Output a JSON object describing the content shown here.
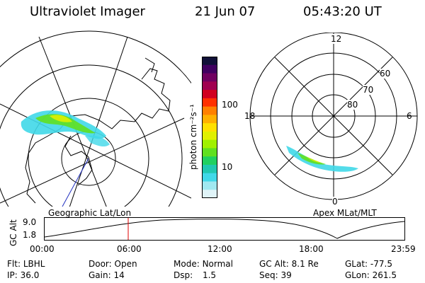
{
  "header": {
    "instrument": "Ultraviolet Imager",
    "date": "21 Jun 07",
    "time": "05:43:20 UT"
  },
  "colorbar": {
    "label": "photon cm⁻²s⁻¹",
    "ticks": [
      "100",
      "10"
    ],
    "colors": [
      "#101038",
      "#400060",
      "#700060",
      "#a00050",
      "#d00020",
      "#ff3000",
      "#ff8000",
      "#ffb000",
      "#ffe000",
      "#e0f000",
      "#a0f000",
      "#60e020",
      "#20d060",
      "#20c8b0",
      "#40d8e8",
      "#a0e8f0",
      "#e0f4f8"
    ]
  },
  "left_map": {
    "caption": "Geographic Lat/Lon"
  },
  "right_polar": {
    "caption": "Apex MLat/MLT",
    "mlt_labels": [
      "12",
      "18",
      "6",
      "0"
    ],
    "mlat_labels": [
      "60",
      "70",
      "80"
    ]
  },
  "altitude_strip": {
    "axis_label": "GC Alt",
    "y_ticks": [
      "9.0",
      "1.8"
    ],
    "x_ticks": [
      "00:00",
      "06:00",
      "12:00",
      "18:00",
      "23:59"
    ],
    "current_time_marker_color": "#e00000"
  },
  "status": {
    "row1": [
      {
        "label": "Flt:",
        "value": "LBHL"
      },
      {
        "label": "Door:",
        "value": "Open"
      },
      {
        "label": "Mode:",
        "value": "Normal"
      },
      {
        "label": "GC Alt:",
        "value": "8.1 Re"
      },
      {
        "label": "GLat:",
        "value": "-77.5"
      }
    ],
    "row2": [
      {
        "label": "IP:",
        "value": "36.0"
      },
      {
        "label": "Gain:",
        "value": "14"
      },
      {
        "label": "Dsp:",
        "value": "1.5"
      },
      {
        "label": "Seq:",
        "value": "39"
      },
      {
        "label": "GLon:",
        "value": "261.5"
      }
    ]
  }
}
